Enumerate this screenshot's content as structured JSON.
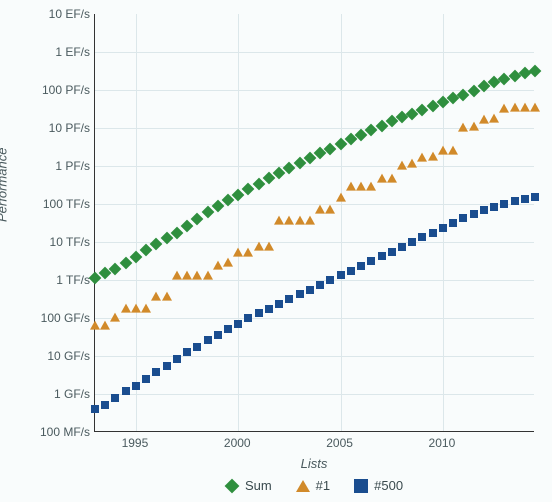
{
  "chart": {
    "type": "scatter-log",
    "background_color": "#f9fcfc",
    "grid_color": "#dce7ea",
    "axis_color": "#333333",
    "label_color": "#4a5a5e",
    "label_fontsize": 12,
    "axis_title_fontsize": 13,
    "x_axis_title": "Lists",
    "y_axis_title": "Performance",
    "x_range": [
      1993,
      2014.5
    ],
    "y_range_log10_gflops": [
      -1,
      10
    ],
    "y_tick_labels": [
      "100 MF/s",
      "1 GF/s",
      "10 GF/s",
      "100 GF/s",
      "1 TF/s",
      "10 TF/s",
      "100 TF/s",
      "1 PF/s",
      "10 PF/s",
      "100 PF/s",
      "1 EF/s",
      "10 EF/s"
    ],
    "x_tick_positions": [
      1995,
      2000,
      2005,
      2010
    ],
    "x_tick_labels": [
      "1995",
      "2000",
      "2005",
      "2010"
    ],
    "zero_line_at_log10": 0,
    "legend": {
      "items": [
        {
          "label": "Sum",
          "color": "#2f8f3e",
          "marker": "diamond"
        },
        {
          "label": "#1",
          "color": "#d18a2a",
          "marker": "triangle"
        },
        {
          "label": "#500",
          "color": "#1a4d8f",
          "marker": "square"
        }
      ]
    },
    "series": [
      {
        "name": "Sum",
        "color": "#2f8f3e",
        "marker": "diamond",
        "marker_size": 9,
        "x": [
          1993,
          1993.5,
          1994,
          1994.5,
          1995,
          1995.5,
          1996,
          1996.5,
          1997,
          1997.5,
          1998,
          1998.5,
          1999,
          1999.5,
          2000,
          2000.5,
          2001,
          2001.5,
          2002,
          2002.5,
          2003,
          2003.5,
          2004,
          2004.5,
          2005,
          2005.5,
          2006,
          2006.5,
          2007,
          2007.5,
          2008,
          2008.5,
          2009,
          2009.5,
          2010,
          2010.5,
          2011,
          2011.5,
          2012,
          2012.5,
          2013,
          2013.5,
          2014,
          2014.5
        ],
        "log10_gflops": [
          3.05,
          3.18,
          3.3,
          3.45,
          3.6,
          3.78,
          3.95,
          4.1,
          4.25,
          4.43,
          4.6,
          4.78,
          4.95,
          5.1,
          5.25,
          5.4,
          5.53,
          5.68,
          5.82,
          5.95,
          6.08,
          6.2,
          6.33,
          6.45,
          6.58,
          6.7,
          6.82,
          6.95,
          7.05,
          7.18,
          7.28,
          7.38,
          7.48,
          7.58,
          7.68,
          7.78,
          7.88,
          7.98,
          8.1,
          8.2,
          8.3,
          8.38,
          8.45,
          8.5
        ]
      },
      {
        "name": "#1",
        "color": "#d18a2a",
        "marker": "triangle",
        "marker_size": 9,
        "x": [
          1993,
          1993.5,
          1994,
          1994.5,
          1995,
          1995.5,
          1996,
          1996.5,
          1997,
          1997.5,
          1998,
          1998.5,
          1999,
          1999.5,
          2000,
          2000.5,
          2001,
          2001.5,
          2002,
          2002.5,
          2003,
          2003.5,
          2004,
          2004.5,
          2005,
          2005.5,
          2006,
          2006.5,
          2007,
          2007.5,
          2008,
          2008.5,
          2009,
          2009.5,
          2010,
          2010.5,
          2011,
          2011.5,
          2012,
          2012.5,
          2013,
          2013.5,
          2014,
          2014.5
        ],
        "log10_gflops": [
          1.78,
          1.8,
          2.0,
          2.23,
          2.23,
          2.23,
          2.54,
          2.54,
          3.1,
          3.1,
          3.1,
          3.1,
          3.38,
          3.45,
          3.7,
          3.7,
          3.88,
          3.88,
          4.55,
          4.55,
          4.55,
          4.55,
          4.85,
          4.85,
          5.15,
          5.45,
          5.45,
          5.45,
          5.65,
          5.65,
          6.0,
          6.05,
          6.2,
          6.25,
          6.4,
          6.4,
          7.0,
          7.03,
          7.2,
          7.25,
          7.5,
          7.52,
          7.53,
          7.53
        ]
      },
      {
        "name": "#500",
        "color": "#1a4d8f",
        "marker": "square",
        "marker_size": 8,
        "x": [
          1993,
          1993.5,
          1994,
          1994.5,
          1995,
          1995.5,
          1996,
          1996.5,
          1997,
          1997.5,
          1998,
          1998.5,
          1999,
          1999.5,
          2000,
          2000.5,
          2001,
          2001.5,
          2002,
          2002.5,
          2003,
          2003.5,
          2004,
          2004.5,
          2005,
          2005.5,
          2006,
          2006.5,
          2007,
          2007.5,
          2008,
          2008.5,
          2009,
          2009.5,
          2010,
          2010.5,
          2011,
          2011.5,
          2012,
          2012.5,
          2013,
          2013.5,
          2014,
          2014.5
        ],
        "log10_gflops": [
          -0.4,
          -0.3,
          -0.1,
          0.08,
          0.22,
          0.4,
          0.58,
          0.75,
          0.92,
          1.1,
          1.25,
          1.42,
          1.55,
          1.7,
          1.85,
          2.0,
          2.12,
          2.25,
          2.38,
          2.5,
          2.62,
          2.75,
          2.88,
          3.0,
          3.12,
          3.25,
          3.38,
          3.5,
          3.63,
          3.75,
          3.88,
          4.0,
          4.12,
          4.25,
          4.38,
          4.5,
          4.63,
          4.73,
          4.83,
          4.92,
          5.0,
          5.08,
          5.13,
          5.18
        ]
      }
    ]
  }
}
